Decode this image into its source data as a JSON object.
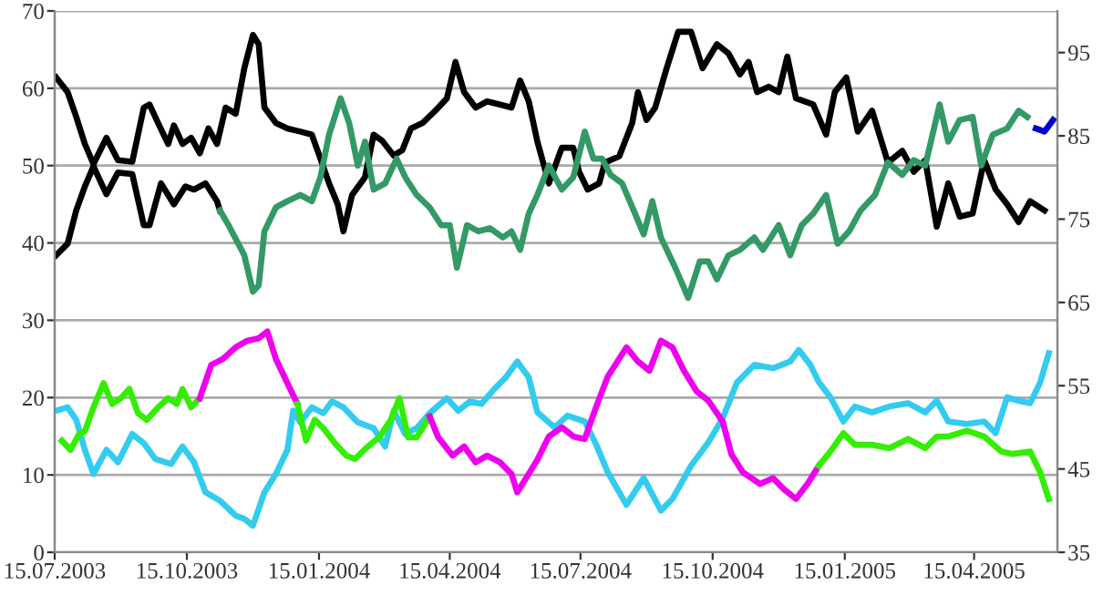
{
  "chart_data": {
    "type": "line",
    "xlim": [
      "2003-07-15",
      "2005-06-12"
    ],
    "xticks": [
      {
        "value": "2003-07-15",
        "label": "15.07.2003"
      },
      {
        "value": "2003-10-15",
        "label": "15.10.2003"
      },
      {
        "value": "2004-01-15",
        "label": "15.01.2004"
      },
      {
        "value": "2004-04-15",
        "label": "15.04.2004"
      },
      {
        "value": "2004-07-15",
        "label": "15.07.2004"
      },
      {
        "value": "2004-10-15",
        "label": "15.10.2004"
      },
      {
        "value": "2005-01-15",
        "label": "15.01.2005"
      },
      {
        "value": "2005-04-15",
        "label": "15.04.2005"
      }
    ],
    "ylim": [
      0,
      70
    ],
    "yticks": [
      0,
      10,
      20,
      30,
      40,
      50,
      60,
      70
    ],
    "y2lim": [
      35,
      100
    ],
    "y2ticks": [
      35,
      45,
      55,
      65,
      75,
      85,
      95
    ],
    "grid": "y",
    "marker": "none",
    "line_style": "solid",
    "series": [
      {
        "color": "#000000",
        "x": [
          "2003-07-16",
          "2003-07-24",
          "2003-07-30",
          "2003-08-05",
          "2003-08-11",
          "2003-08-20",
          "2003-08-28",
          "2003-09-07",
          "2003-09-15",
          "2003-09-19",
          "2003-09-25",
          "2003-10-02",
          "2003-10-06",
          "2003-10-12",
          "2003-10-18",
          "2003-10-24",
          "2003-10-30",
          "2003-11-05",
          "2003-11-11",
          "2003-11-18",
          "2003-11-24",
          "2003-11-30",
          "2003-12-04",
          "2003-12-08",
          "2003-12-16",
          "2003-12-24",
          "2004-01-02",
          "2004-01-10",
          "2004-01-16",
          "2004-01-22",
          "2004-01-28",
          "2004-02-01",
          "2004-02-07",
          "2004-02-16",
          "2004-02-22",
          "2004-02-28",
          "2004-03-07",
          "2004-03-13",
          "2004-03-19",
          "2004-03-27",
          "2004-04-05",
          "2004-04-13",
          "2004-04-19",
          "2004-04-25",
          "2004-05-03",
          "2004-05-11",
          "2004-05-20",
          "2004-05-28",
          "2004-06-03",
          "2004-06-09",
          "2004-06-15",
          "2004-06-23",
          "2004-07-02",
          "2004-07-10",
          "2004-07-14",
          "2004-07-20",
          "2004-07-28",
          "2004-08-01",
          "2004-08-11",
          "2004-08-20",
          "2004-08-24",
          "2004-08-30",
          "2004-09-05",
          "2004-09-13",
          "2004-09-21",
          "2004-09-30",
          "2004-10-08",
          "2004-10-18",
          "2004-10-26",
          "2004-11-03",
          "2004-11-09",
          "2004-11-15",
          "2004-11-23",
          "2004-11-30",
          "2004-12-06",
          "2004-12-12",
          "2004-12-24",
          "2005-01-02",
          "2005-01-08",
          "2005-01-16",
          "2005-01-24",
          "2005-02-03",
          "2005-02-14",
          "2005-02-24",
          "2005-03-04",
          "2005-03-12",
          "2005-03-20",
          "2005-03-28",
          "2005-04-05",
          "2005-04-14",
          "2005-04-22",
          "2005-04-30",
          "2005-05-08",
          "2005-05-16",
          "2005-05-24",
          "2005-06-03"
        ],
        "values": [
          61.4,
          59.5,
          56.3,
          52.8,
          50.2,
          53.6,
          50.7,
          50.5,
          57.5,
          57.9,
          55.5,
          52.8,
          55.2,
          52.8,
          53.6,
          51.6,
          54.8,
          52.8,
          57.5,
          56.7,
          62.6,
          66.9,
          65.7,
          57.5,
          55.5,
          54.8,
          54.4,
          54.0,
          50.9,
          47.7,
          45.0,
          41.5,
          46.2,
          48.5,
          54.0,
          53.2,
          51.3,
          52.0,
          54.8,
          55.5,
          57.1,
          58.7,
          63.4,
          59.5,
          57.5,
          58.3,
          57.9,
          57.5,
          61.0,
          58.3,
          53.1,
          47.7,
          52.3,
          52.3,
          49.2,
          46.9,
          47.7,
          50.4,
          51.2,
          55.5,
          59.5,
          55.9,
          57.5,
          62.6,
          67.3,
          67.3,
          62.6,
          65.7,
          64.5,
          61.8,
          63.4,
          59.5,
          60.2,
          59.5,
          64.1,
          58.7,
          57.9,
          54.0,
          59.5,
          61.4,
          54.4,
          57.1,
          50.4,
          51.9,
          49.2,
          50.7,
          42.1,
          47.7,
          43.4,
          43.8,
          50.7,
          46.9,
          45.0,
          42.7,
          45.4,
          44.2
        ]
      },
      {
        "color": "#000000",
        "x": [
          "2003-07-16",
          "2003-07-24",
          "2003-07-30",
          "2003-08-05",
          "2003-08-11",
          "2003-08-20",
          "2003-08-28",
          "2003-09-07",
          "2003-09-15",
          "2003-09-19",
          "2003-09-27",
          "2003-10-06",
          "2003-10-14",
          "2003-10-20",
          "2003-10-28",
          "2003-11-05",
          "2003-11-07"
        ],
        "values": [
          38.4,
          39.9,
          44.2,
          47.3,
          49.9,
          46.3,
          49.1,
          48.9,
          42.3,
          42.3,
          47.7,
          45.0,
          47.3,
          46.9,
          47.7,
          45.4,
          44.2
        ]
      },
      {
        "color": "#339966",
        "x": [
          "2003-11-07",
          "2003-11-13",
          "2003-11-24",
          "2003-11-30",
          "2003-12-04",
          "2003-12-08",
          "2003-12-16",
          "2003-12-24",
          "2004-01-02",
          "2004-01-10",
          "2004-01-16",
          "2004-01-22",
          "2004-01-30",
          "2004-02-05",
          "2004-02-11",
          "2004-02-16",
          "2004-02-22",
          "2004-03-01",
          "2004-03-09",
          "2004-03-15",
          "2004-03-23",
          "2004-04-01",
          "2004-04-09",
          "2004-04-15",
          "2004-04-20",
          "2004-04-27",
          "2004-05-05",
          "2004-05-13",
          "2004-05-22",
          "2004-05-28",
          "2004-06-03",
          "2004-06-09",
          "2004-06-15",
          "2004-06-23",
          "2004-07-02",
          "2004-07-10",
          "2004-07-18",
          "2004-07-24",
          "2004-07-30",
          "2004-08-05",
          "2004-08-13",
          "2004-08-22",
          "2004-08-28",
          "2004-09-03",
          "2004-09-09",
          "2004-09-19",
          "2004-09-28",
          "2004-10-06",
          "2004-10-12",
          "2004-10-18",
          "2004-10-26",
          "2004-11-03",
          "2004-11-13",
          "2004-11-19",
          "2004-11-30",
          "2004-12-08",
          "2004-12-16",
          "2004-12-24",
          "2005-01-02",
          "2005-01-10",
          "2005-01-18",
          "2005-01-26",
          "2005-02-05",
          "2005-02-14",
          "2005-02-24",
          "2005-03-04",
          "2005-03-12",
          "2005-03-22",
          "2005-03-28",
          "2005-04-05",
          "2005-04-14",
          "2005-04-20",
          "2005-04-28",
          "2005-05-08",
          "2005-05-16",
          "2005-05-22"
        ],
        "values": [
          44.2,
          42.3,
          38.4,
          33.7,
          34.5,
          41.5,
          44.6,
          45.4,
          46.2,
          45.4,
          48.5,
          54.0,
          58.7,
          55.5,
          50.0,
          53.1,
          46.9,
          47.7,
          50.9,
          48.5,
          46.2,
          44.6,
          42.3,
          42.3,
          36.8,
          42.3,
          41.5,
          41.9,
          40.7,
          41.5,
          39.1,
          43.8,
          46.2,
          50.0,
          46.9,
          48.5,
          54.4,
          50.9,
          50.9,
          48.8,
          47.7,
          43.8,
          41.1,
          45.4,
          40.7,
          36.8,
          32.9,
          37.6,
          37.6,
          35.3,
          38.4,
          39.1,
          40.7,
          39.1,
          42.3,
          38.4,
          42.3,
          43.8,
          46.2,
          39.9,
          41.5,
          44.2,
          46.2,
          50.4,
          48.8,
          50.7,
          50.0,
          57.9,
          53.1,
          55.9,
          56.3,
          50.0,
          54.0,
          54.8,
          57.1,
          56.3
        ]
      },
      {
        "color": "#0000cc",
        "x": [
          "2005-05-28",
          "2005-06-03",
          "2005-06-09"
        ],
        "values": [
          54.8,
          54.4,
          55.9
        ]
      },
      {
        "color": "#33ccee",
        "axis": "y2",
        "x": [
          "2003-07-16",
          "2003-07-24",
          "2003-07-30",
          "2003-08-05",
          "2003-08-11",
          "2003-08-20",
          "2003-08-28",
          "2003-09-07",
          "2003-09-15",
          "2003-09-23",
          "2003-10-04",
          "2003-10-12",
          "2003-10-20",
          "2003-10-28",
          "2003-11-07",
          "2003-11-18",
          "2003-11-24",
          "2003-11-30",
          "2003-12-08",
          "2003-12-16",
          "2003-12-24",
          "2003-12-28",
          "2004-01-02",
          "2004-01-10",
          "2004-01-18",
          "2004-01-24",
          "2004-02-01",
          "2004-02-11",
          "2004-02-22",
          "2004-03-01",
          "2004-03-07",
          "2004-03-15",
          "2004-03-23",
          "2004-04-01",
          "2004-04-13",
          "2004-04-21",
          "2004-04-29",
          "2004-05-07",
          "2004-05-16",
          "2004-05-24",
          "2004-06-01",
          "2004-06-09",
          "2004-06-15",
          "2004-06-27",
          "2004-07-06",
          "2004-07-18",
          "2004-07-26",
          "2004-08-03",
          "2004-08-16",
          "2004-08-28",
          "2004-09-09",
          "2004-09-17",
          "2004-09-30",
          "2004-10-12",
          "2004-10-22",
          "2004-11-01",
          "2004-11-13",
          "2004-11-26",
          "2004-12-08",
          "2004-12-14",
          "2004-12-22",
          "2004-12-28",
          "2005-01-05",
          "2005-01-14",
          "2005-01-22",
          "2005-02-03",
          "2005-02-15",
          "2005-02-28",
          "2005-03-12",
          "2005-03-20",
          "2005-03-28",
          "2005-04-10",
          "2005-04-22",
          "2005-04-30",
          "2005-05-08",
          "2005-05-16",
          "2005-05-24",
          "2005-05-31",
          "2005-06-06"
        ],
        "values": [
          52.0,
          52.4,
          50.9,
          47.3,
          44.4,
          47.3,
          45.8,
          49.2,
          48.1,
          46.2,
          45.6,
          47.7,
          45.8,
          42.2,
          41.2,
          39.4,
          39.0,
          38.2,
          42.2,
          44.4,
          47.3,
          52.0,
          50.6,
          52.4,
          51.7,
          53.1,
          52.4,
          50.6,
          49.9,
          47.7,
          52.0,
          49.2,
          49.9,
          51.7,
          53.5,
          52.0,
          53.1,
          52.8,
          54.6,
          56.0,
          57.9,
          56.0,
          51.8,
          50.0,
          51.4,
          50.7,
          47.9,
          44.6,
          40.7,
          43.9,
          40.0,
          41.4,
          45.4,
          48.2,
          51.1,
          55.4,
          57.5,
          57.1,
          57.9,
          59.3,
          57.5,
          55.4,
          53.6,
          50.7,
          52.5,
          51.8,
          52.5,
          52.9,
          51.8,
          53.2,
          50.7,
          50.4,
          50.7,
          49.3,
          53.6,
          53.2,
          52.9,
          55.4,
          58.9
        ]
      },
      {
        "color": "#33ee00",
        "axis": "y2",
        "x": [
          "2003-07-20",
          "2003-07-26",
          "2003-08-01",
          "2003-08-05",
          "2003-08-11",
          "2003-08-18",
          "2003-08-24",
          "2003-08-30",
          "2003-09-05",
          "2003-09-11",
          "2003-09-17",
          "2003-09-25",
          "2003-10-02",
          "2003-10-08",
          "2003-10-12",
          "2003-10-18",
          "2003-10-24"
        ],
        "values": [
          48.4,
          47.3,
          49.2,
          49.5,
          52.4,
          55.3,
          52.8,
          53.5,
          54.6,
          51.7,
          50.9,
          52.4,
          53.5,
          52.8,
          54.6,
          52.4,
          53.5
        ]
      },
      {
        "color": "#ee00ee",
        "axis": "y2",
        "x": [
          "2003-10-24",
          "2003-11-01",
          "2003-11-09",
          "2003-11-18",
          "2003-11-26",
          "2003-12-04",
          "2003-12-10",
          "2003-12-16",
          "2003-12-24",
          "2003-12-31"
        ],
        "values": [
          53.5,
          57.5,
          58.2,
          59.6,
          60.4,
          60.7,
          61.5,
          58.2,
          55.3,
          52.8
        ]
      },
      {
        "color": "#33ee00",
        "axis": "y2",
        "x": [
          "2003-12-31",
          "2004-01-06",
          "2004-01-12",
          "2004-01-18",
          "2004-01-26",
          "2004-02-03",
          "2004-02-09",
          "2004-02-18",
          "2004-02-26",
          "2004-03-05",
          "2004-03-11",
          "2004-03-17",
          "2004-03-23",
          "2004-04-01"
        ],
        "values": [
          52.8,
          48.4,
          50.9,
          49.9,
          48.1,
          46.6,
          46.2,
          47.7,
          48.8,
          50.9,
          53.5,
          48.8,
          48.8,
          51.3
        ]
      },
      {
        "color": "#ee00ee",
        "axis": "y2",
        "x": [
          "2004-04-01",
          "2004-04-07",
          "2004-04-17",
          "2004-04-25",
          "2004-05-03",
          "2004-05-11",
          "2004-05-20",
          "2004-05-28",
          "2004-06-01",
          "2004-06-09",
          "2004-06-15",
          "2004-06-23",
          "2004-07-02",
          "2004-07-10",
          "2004-07-18",
          "2004-07-26",
          "2004-08-03",
          "2004-08-16",
          "2004-08-24",
          "2004-09-01",
          "2004-09-09",
          "2004-09-17",
          "2004-09-25",
          "2004-10-04",
          "2004-10-12",
          "2004-10-22",
          "2004-10-28",
          "2004-11-05",
          "2004-11-17",
          "2004-11-26",
          "2004-12-04",
          "2004-12-12",
          "2004-12-20",
          "2004-12-28"
        ],
        "values": [
          51.3,
          48.8,
          46.6,
          47.7,
          45.8,
          46.6,
          45.8,
          44.4,
          42.2,
          44.4,
          46.1,
          48.9,
          50.0,
          48.9,
          48.6,
          52.5,
          56.1,
          59.6,
          57.9,
          56.8,
          60.4,
          59.6,
          56.8,
          54.3,
          53.2,
          50.7,
          46.8,
          44.6,
          43.2,
          43.9,
          42.5,
          41.4,
          43.2,
          45.4
        ]
      },
      {
        "color": "#33ee00",
        "axis": "y2",
        "x": [
          "2004-12-28",
          "2005-01-05",
          "2005-01-14",
          "2005-01-22",
          "2005-02-03",
          "2005-02-15",
          "2005-02-28",
          "2005-03-12",
          "2005-03-20",
          "2005-03-28",
          "2005-04-10",
          "2005-04-22",
          "2005-05-04",
          "2005-05-12",
          "2005-05-24",
          "2005-05-31",
          "2005-06-06"
        ],
        "values": [
          45.4,
          47.1,
          49.3,
          47.9,
          47.9,
          47.5,
          48.6,
          47.5,
          48.9,
          48.9,
          49.6,
          48.9,
          47.1,
          46.8,
          47.1,
          44.6,
          41.4
        ]
      }
    ]
  }
}
